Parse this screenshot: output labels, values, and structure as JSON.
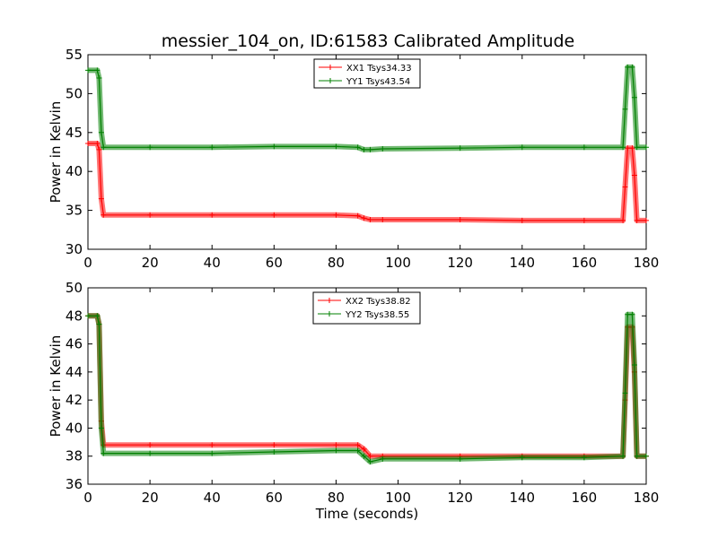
{
  "figure_title": "messier_104_on, ID:61583 Calibrated Amplitude",
  "colors": {
    "red": "#ff0000",
    "green": "#008000",
    "axes": "#000000"
  },
  "chart_data": [
    {
      "type": "line",
      "title": "messier_104_on, ID:61583 Calibrated Amplitude",
      "xlabel": "",
      "ylabel": "Power in Kelvin",
      "xlim": [
        0,
        180
      ],
      "ylim": [
        30,
        55
      ],
      "xticks": [
        0,
        20,
        40,
        60,
        80,
        100,
        120,
        140,
        160,
        180
      ],
      "yticks": [
        30,
        35,
        40,
        45,
        50,
        55
      ],
      "grid": false,
      "legend_position": "top-center",
      "series": [
        {
          "name": "XX1 Tsys34.33",
          "color": "#ff0000",
          "x": [
            0,
            3,
            3.6,
            4.3,
            5,
            20,
            40,
            60,
            80,
            87,
            89,
            91,
            95,
            120,
            140,
            160,
            172.5,
            173.2,
            174,
            175.5,
            176.2,
            177,
            180
          ],
          "y": [
            43.6,
            43.6,
            42.8,
            36.5,
            34.4,
            34.4,
            34.4,
            34.4,
            34.4,
            34.3,
            34.0,
            33.8,
            33.8,
            33.8,
            33.7,
            33.7,
            33.7,
            38.0,
            43.0,
            43.0,
            39.5,
            33.7,
            33.7
          ]
        },
        {
          "name": "YY1 Tsys43.54",
          "color": "#008000",
          "x": [
            0,
            3,
            3.6,
            4.3,
            5,
            20,
            40,
            60,
            80,
            87,
            89,
            91,
            95,
            120,
            140,
            160,
            172.5,
            173.2,
            174,
            175.5,
            176.2,
            177,
            180
          ],
          "y": [
            53.0,
            53.0,
            52.0,
            45.0,
            43.1,
            43.1,
            43.1,
            43.2,
            43.2,
            43.1,
            42.8,
            42.8,
            42.9,
            43.0,
            43.1,
            43.1,
            43.1,
            48.0,
            53.4,
            53.4,
            49.5,
            43.1,
            43.1
          ]
        }
      ]
    },
    {
      "type": "line",
      "title": "",
      "xlabel": "Time (seconds)",
      "ylabel": "Power in Kelvin",
      "xlim": [
        0,
        180
      ],
      "ylim": [
        36,
        50
      ],
      "xticks": [
        0,
        20,
        40,
        60,
        80,
        100,
        120,
        140,
        160,
        180
      ],
      "yticks": [
        36,
        38,
        40,
        42,
        44,
        46,
        48,
        50
      ],
      "grid": false,
      "legend_position": "top-center",
      "series": [
        {
          "name": "XX2 Tsys38.82",
          "color": "#ff0000",
          "x": [
            0,
            3,
            3.6,
            4.3,
            5,
            20,
            40,
            60,
            80,
            87,
            89,
            91,
            95,
            120,
            140,
            160,
            172.5,
            173.2,
            174,
            175.5,
            176.2,
            177,
            180
          ],
          "y": [
            48.0,
            48.0,
            47.4,
            40.5,
            38.8,
            38.8,
            38.8,
            38.8,
            38.8,
            38.8,
            38.5,
            38.0,
            38.0,
            38.0,
            38.0,
            38.0,
            38.0,
            42.0,
            47.2,
            47.2,
            44.0,
            38.0,
            38.0
          ]
        },
        {
          "name": "YY2 Tsys38.55",
          "color": "#008000",
          "x": [
            0,
            3,
            3.6,
            4.3,
            5,
            20,
            40,
            60,
            80,
            87,
            89,
            91,
            95,
            120,
            140,
            160,
            172.5,
            173.2,
            174,
            175.5,
            176.2,
            177,
            180
          ],
          "y": [
            48.0,
            48.0,
            47.4,
            40.0,
            38.2,
            38.2,
            38.2,
            38.3,
            38.4,
            38.4,
            38.0,
            37.6,
            37.8,
            37.8,
            37.9,
            37.9,
            38.0,
            42.5,
            48.1,
            48.1,
            44.5,
            38.0,
            38.0
          ]
        }
      ]
    }
  ]
}
